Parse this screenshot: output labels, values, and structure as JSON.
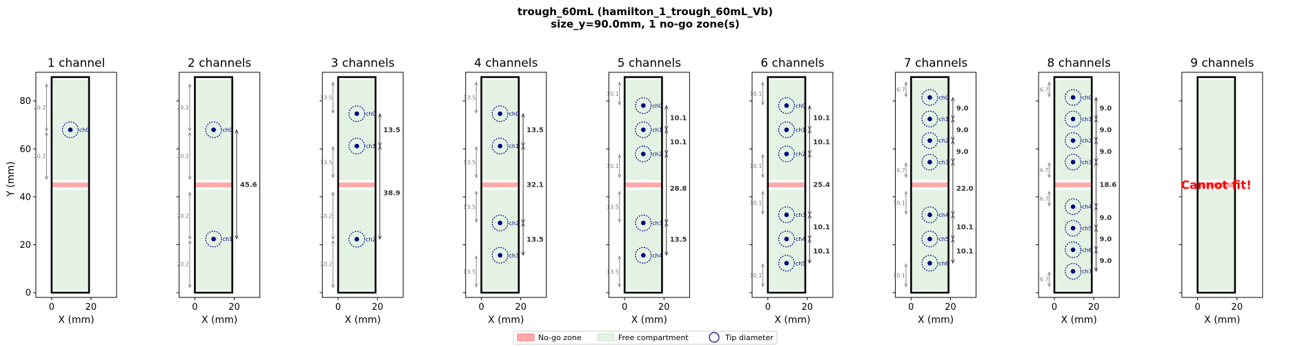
{
  "figure": {
    "title_line1": "trough_60mL (hamilton_1_trough_60mL_Vb)",
    "title_line2": "size_y=90.0mm, 1 no-go zone(s)"
  },
  "legend": [
    {
      "label": "No-go zone",
      "color": "#ffaaaa"
    },
    {
      "label": "Free compartment",
      "color": "#e3f2e3"
    },
    {
      "label": "Tip diameter",
      "color": "#000080"
    }
  ],
  "chart_data": {
    "type": "scatter",
    "xlabel": "X (mm)",
    "ylabel": "Y (mm)",
    "xlim": [
      -8,
      33
    ],
    "ylim": [
      -2,
      92
    ],
    "xticks": [
      0,
      20
    ],
    "yticks": [
      0,
      20,
      40,
      60,
      80
    ],
    "trough": {
      "x0": 0,
      "x1": 19,
      "y0": 0,
      "y1": 90
    },
    "nogo": {
      "y0": 44,
      "y1": 46
    },
    "free_zones": [
      [
        1,
        43
      ],
      [
        47,
        89
      ]
    ],
    "tip_x": 9.5,
    "tip_radius": 4,
    "colors": {
      "trough": "#000000",
      "free": "#e3f2e3",
      "nogo": "#ffaaaa",
      "tip": "#000080",
      "gap": "#333333",
      "margin": "#777777"
    },
    "panels": [
      {
        "title": "1 channel",
        "y": [
          68
        ],
        "gaps": [],
        "margins": [
          {
            "y0": 47,
            "y1": 67.2,
            "label": "20.2"
          },
          {
            "y0": 67.2,
            "y1": 87.4,
            "label": "20.2"
          }
        ]
      },
      {
        "title": "2 channels",
        "y": [
          68,
          22.4
        ],
        "gaps": [
          {
            "label": "45.6"
          }
        ],
        "margins": [
          {
            "y0": 47,
            "y1": 67.2,
            "label": "20.2"
          },
          {
            "y0": 67.2,
            "y1": 87.4,
            "label": "20.2"
          },
          {
            "y0": 1.8,
            "y1": 22,
            "label": "20.2"
          },
          {
            "y0": 22,
            "y1": 42.2,
            "label": "20.2"
          }
        ]
      },
      {
        "title": "3 channels",
        "y": [
          74.7,
          61.2,
          22.3
        ],
        "gaps": [
          {
            "label": "13.5"
          },
          {
            "label": "38.9"
          }
        ],
        "margins": [
          {
            "y0": 74.7,
            "y1": 88.2,
            "label": "13.5"
          },
          {
            "y0": 47.7,
            "y1": 61.2,
            "label": "13.5"
          },
          {
            "y0": 1.8,
            "y1": 22,
            "label": "20.2"
          },
          {
            "y0": 22,
            "y1": 42.2,
            "label": "20.2"
          }
        ]
      },
      {
        "title": "4 channels",
        "y": [
          74.7,
          61.2,
          29.1,
          15.6
        ],
        "gaps": [
          {
            "label": "13.5"
          },
          {
            "label": "32.1"
          },
          {
            "label": "13.5"
          }
        ],
        "margins": [
          {
            "y0": 74.7,
            "y1": 88.2,
            "label": "13.5"
          },
          {
            "y0": 47.7,
            "y1": 61.2,
            "label": "13.5"
          },
          {
            "y0": 29.1,
            "y1": 42.6,
            "label": "13.5"
          },
          {
            "y0": 2.1,
            "y1": 15.6,
            "label": "13.5"
          }
        ]
      },
      {
        "title": "5 channels",
        "y": [
          78.1,
          68,
          57.9,
          29.1,
          15.6
        ],
        "gaps": [
          {
            "label": "10.1"
          },
          {
            "label": "10.1"
          },
          {
            "label": "28.8"
          },
          {
            "label": "13.5"
          }
        ],
        "margins": [
          {
            "y0": 78.1,
            "y1": 88.2,
            "label": "10.1"
          },
          {
            "y0": 47.8,
            "y1": 57.9,
            "label": "10.1"
          },
          {
            "y0": 29.1,
            "y1": 42.6,
            "label": "13.5"
          },
          {
            "y0": 2.1,
            "y1": 15.6,
            "label": "13.5"
          }
        ]
      },
      {
        "title": "6 channels",
        "y": [
          78.1,
          68,
          57.9,
          32.5,
          22.4,
          12.3
        ],
        "gaps": [
          {
            "label": "10.1"
          },
          {
            "label": "10.1"
          },
          {
            "label": "25.4"
          },
          {
            "label": "10.1"
          },
          {
            "label": "10.1"
          }
        ],
        "margins": [
          {
            "y0": 78.1,
            "y1": 88.2,
            "label": "10.1"
          },
          {
            "y0": 47.8,
            "y1": 57.9,
            "label": "10.1"
          },
          {
            "y0": 32.5,
            "y1": 42.6,
            "label": "10.1"
          },
          {
            "y0": 2.2,
            "y1": 12.3,
            "label": "10.1"
          }
        ]
      },
      {
        "title": "7 channels",
        "y": [
          81.5,
          72.5,
          63.5,
          54.5,
          32.5,
          22.4,
          12.3
        ],
        "gaps": [
          {
            "label": "9.0"
          },
          {
            "label": "9.0"
          },
          {
            "label": "9.0"
          },
          {
            "label": "22.0"
          },
          {
            "label": "10.1"
          },
          {
            "label": "10.1"
          }
        ],
        "margins": [
          {
            "y0": 81.5,
            "y1": 88.2,
            "label": "6.7"
          },
          {
            "y0": 47.8,
            "y1": 54.5,
            "label": "6.7"
          },
          {
            "y0": 32.5,
            "y1": 42.6,
            "label": "10.1"
          },
          {
            "y0": 2.2,
            "y1": 12.3,
            "label": "10.1"
          }
        ]
      },
      {
        "title": "8 channels",
        "y": [
          81.5,
          72.5,
          63.5,
          54.5,
          35.9,
          26.9,
          17.9,
          8.9
        ],
        "gaps": [
          {
            "label": "9.0"
          },
          {
            "label": "9.0"
          },
          {
            "label": "9.0"
          },
          {
            "label": "18.6"
          },
          {
            "label": "9.0"
          },
          {
            "label": "9.0"
          },
          {
            "label": "9.0"
          }
        ],
        "margins": [
          {
            "y0": 81.5,
            "y1": 88.2,
            "label": "6.7"
          },
          {
            "y0": 47.8,
            "y1": 54.5,
            "label": "6.7"
          },
          {
            "y0": 35.9,
            "y1": 42.6,
            "label": "6.7"
          },
          {
            "y0": 2.2,
            "y1": 8.9,
            "label": "6.7"
          }
        ]
      },
      {
        "title": "9 channels",
        "y": [],
        "gaps": [],
        "margins": [],
        "message": "Cannot fit!"
      }
    ]
  }
}
